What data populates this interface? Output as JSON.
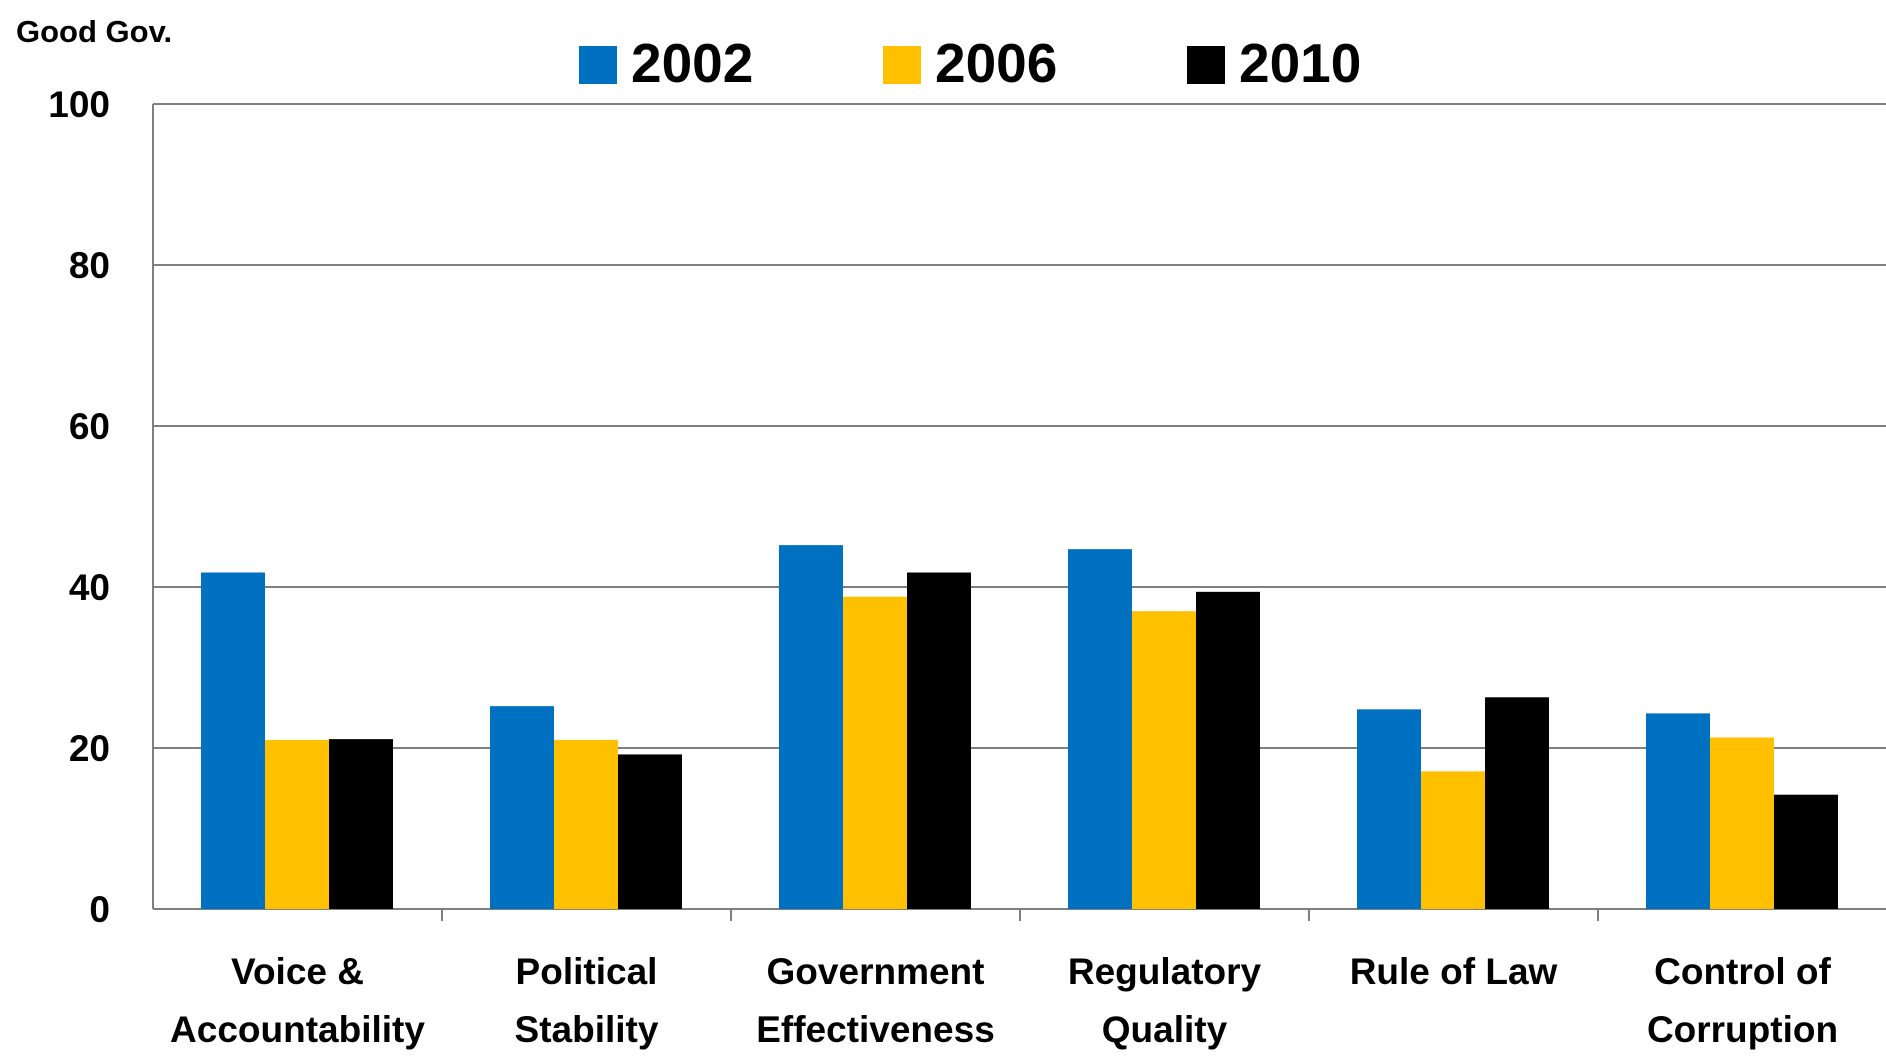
{
  "chart_data": {
    "type": "bar",
    "y_unit_label": "Good Gov.",
    "categories": [
      [
        "Voice &",
        "Accountability"
      ],
      [
        "Political",
        "Stability"
      ],
      [
        "Government",
        "Effectiveness"
      ],
      [
        "Regulatory",
        "Quality"
      ],
      [
        "Rule of Law"
      ],
      [
        "Control of",
        "Corruption"
      ]
    ],
    "series": [
      {
        "name": "2002",
        "color": "#0070C0",
        "values": [
          41.8,
          25.2,
          45.2,
          44.7,
          24.8,
          24.3
        ]
      },
      {
        "name": "2006",
        "color": "#FFC000",
        "values": [
          21.0,
          21.0,
          38.8,
          37.0,
          17.1,
          21.3
        ]
      },
      {
        "name": "2010",
        "color": "#000000",
        "values": [
          21.1,
          19.2,
          41.8,
          39.4,
          26.3,
          14.2
        ]
      }
    ],
    "ylim": [
      0,
      100
    ],
    "yticks": [
      0,
      20,
      40,
      60,
      80,
      100
    ],
    "grid": true,
    "legend_position": "top"
  }
}
